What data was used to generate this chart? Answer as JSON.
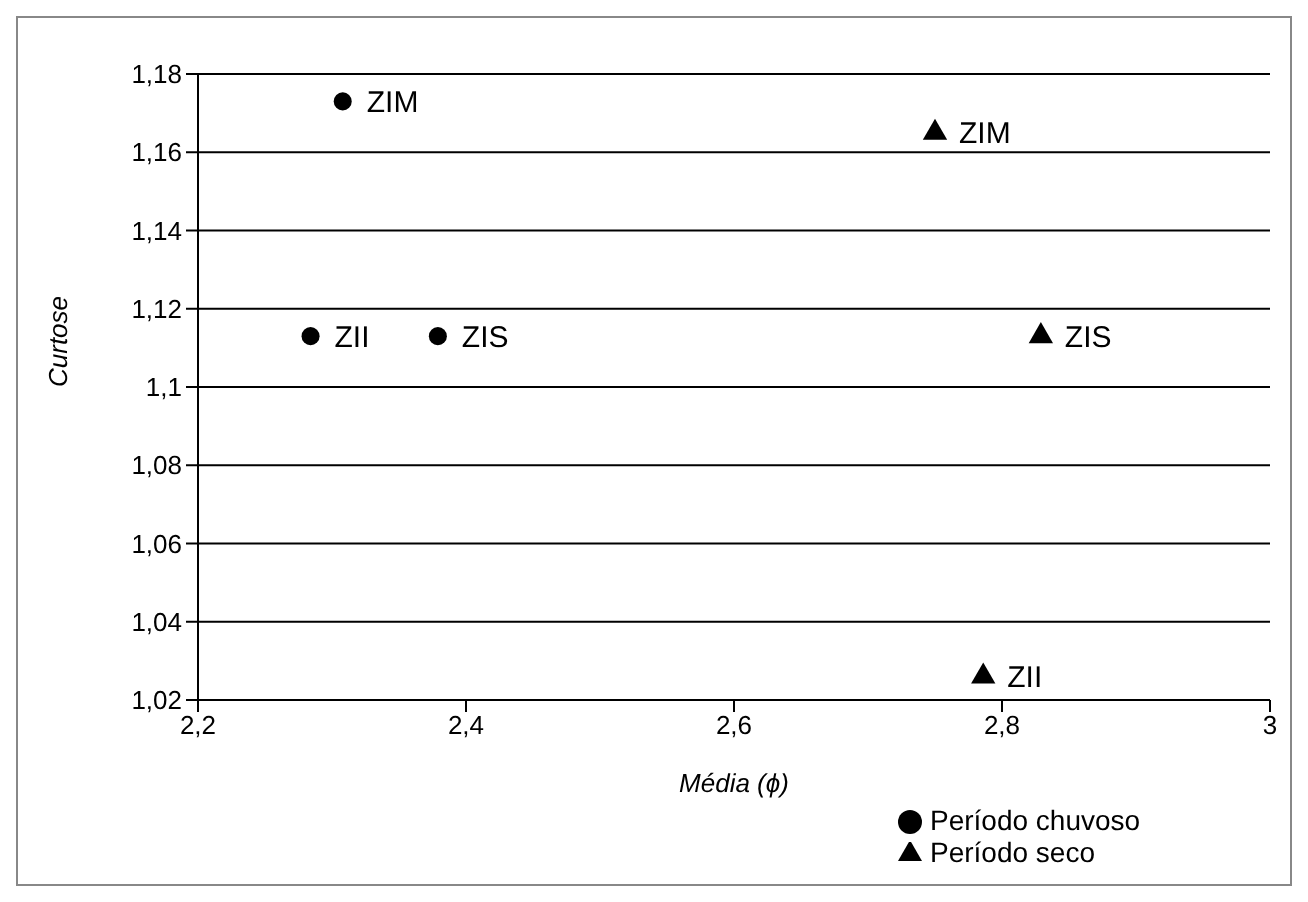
{
  "chart_data": {
    "type": "scatter",
    "xlabel": "Média (ϕ)",
    "ylabel": "Curtose",
    "xlim": [
      2.2,
      3
    ],
    "xticks": [
      {
        "value": 2.2,
        "label": "2,2"
      },
      {
        "value": 2.4,
        "label": "2,4"
      },
      {
        "value": 2.6,
        "label": "2,6"
      },
      {
        "value": 2.8,
        "label": "2,8"
      },
      3
    ],
    "ylim": [
      1.02,
      1.18
    ],
    "yticks": [
      {
        "value": 1.02,
        "label": "1,02"
      },
      {
        "value": 1.04,
        "label": "1,04"
      },
      {
        "value": 1.06,
        "label": "1,06"
      },
      {
        "value": 1.08,
        "label": "1,08"
      },
      {
        "value": 1.1,
        "label": "1,1"
      },
      {
        "value": 1.12,
        "label": "1,12"
      },
      {
        "value": 1.14,
        "label": "1,14"
      },
      {
        "value": 1.16,
        "label": "1,16"
      },
      {
        "value": 1.18,
        "label": "1,18"
      }
    ],
    "grid": "y",
    "legend": "bottom right",
    "series": [
      {
        "name": "Período chuvoso",
        "color": "#000000",
        "marker": "circle",
        "x": [
          2.308,
          2.284,
          2.379
        ],
        "values": [
          1.173,
          1.113,
          1.113
        ]
      },
      {
        "name": "Período seco",
        "color": "#000000",
        "marker": "triangle",
        "x": [
          2.75,
          2.829,
          2.786
        ],
        "values": [
          1.165,
          1.113,
          1.026
        ]
      }
    ],
    "annotations": [
      {
        "text": "ZIM",
        "x": 2.308,
        "y": 1.173
      },
      {
        "text": "ZII",
        "x": 2.284,
        "y": 1.113
      },
      {
        "text": "ZIS",
        "x": 2.379,
        "y": 1.113
      },
      {
        "text": "ZIM",
        "x": 2.75,
        "y": 1.165
      },
      {
        "text": "ZIS",
        "x": 2.829,
        "y": 1.113
      },
      {
        "text": "ZII",
        "x": 2.786,
        "y": 1.026
      }
    ]
  }
}
